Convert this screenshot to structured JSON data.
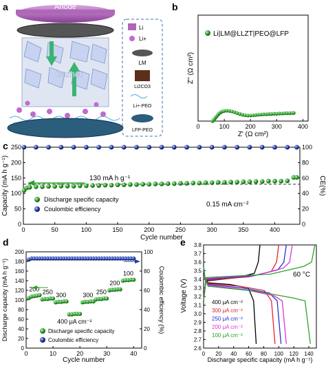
{
  "panel_labels": [
    "a",
    "b",
    "c",
    "d",
    "e"
  ],
  "schematic": {
    "anode_label": "Anode",
    "center_label": "Garnet",
    "legend": [
      {
        "icon": "li-disk-icon",
        "label": "Li"
      },
      {
        "icon": "li-ion-icon",
        "label": "Li+"
      },
      {
        "icon": "liquid-metal-icon",
        "label": "LM"
      },
      {
        "icon": "li2co3-icon",
        "label": "Li2CO3"
      },
      {
        "icon": "li-peo-icon",
        "label": "Li+-PEO"
      },
      {
        "icon": "lfp-peo-icon",
        "label": "LFP-PEO"
      }
    ],
    "colors": {
      "anode": "#b067b8",
      "garnet_arrow": "#3cb371",
      "lfp": "#2b5d7c",
      "peo": "#4aa8d8",
      "li_ion": "#c06ad0"
    }
  },
  "chart_data": [
    {
      "panel": "b",
      "type": "scatter",
      "xlabel": "Z' (Ω cm²)",
      "ylabel": "Z'' (Ω cm²)",
      "xlim": [
        0,
        420
      ],
      "ylim": [
        0,
        420
      ],
      "xticks": [
        0,
        100,
        200,
        300,
        400
      ],
      "yticks": [],
      "series": [
        {
          "name": "Li|LM@LLZT|PEO@LFP",
          "color": "#2ca02c",
          "x": [
            55,
            60,
            65,
            70,
            75,
            80,
            85,
            90,
            95,
            100,
            110,
            120,
            130,
            140,
            150,
            160,
            170,
            180,
            190,
            200,
            210,
            220,
            230,
            240,
            250,
            260,
            270,
            280,
            290,
            300,
            310,
            320,
            330,
            340,
            350,
            360,
            365
          ],
          "y": [
            0,
            5,
            12,
            18,
            24,
            30,
            34,
            37,
            39,
            40,
            41,
            40,
            38,
            35,
            31,
            28,
            25,
            23,
            22,
            22,
            23,
            24,
            25,
            26,
            27,
            27,
            28,
            28,
            29,
            29,
            30,
            30,
            31,
            31,
            31,
            32,
            32
          ]
        }
      ]
    },
    {
      "panel": "c",
      "type": "scatter",
      "xlabel": "Cycle number",
      "ylabel": "Capacity (mA h g⁻¹)",
      "y2label": "CE(%)",
      "xlim": [
        0,
        440
      ],
      "ylim": [
        0,
        250
      ],
      "y2lim": [
        0,
        100
      ],
      "xticks": [
        0,
        50,
        100,
        150,
        200,
        250,
        300,
        350,
        400
      ],
      "yticks": [
        0,
        50,
        100,
        150,
        200,
        250
      ],
      "y2ticks": [
        0,
        20,
        40,
        60,
        80,
        100
      ],
      "annotations": [
        "130 mA h g⁻¹",
        "0.15 mA cm⁻²"
      ],
      "legend_position": "bottom-left",
      "series": [
        {
          "name": "Discharge specific capacity",
          "color": "#2ca02c",
          "axis": "left",
          "x": [
            1,
            5,
            10,
            20,
            30,
            40,
            50,
            60,
            70,
            80,
            90,
            100,
            110,
            120,
            130,
            140,
            150,
            160,
            170,
            180,
            190,
            200,
            210,
            220,
            230,
            240,
            250,
            260,
            270,
            280,
            290,
            300,
            310,
            320,
            330,
            340,
            350,
            360,
            370,
            380,
            390,
            400,
            410,
            420,
            430,
            435
          ],
          "y": [
            110,
            118,
            120,
            122,
            122,
            123,
            123,
            124,
            124,
            124,
            125,
            125,
            126,
            126,
            127,
            127,
            128,
            128,
            129,
            129,
            130,
            130,
            131,
            131,
            132,
            132,
            133,
            133,
            134,
            134,
            135,
            135,
            136,
            136,
            137,
            137,
            138,
            138,
            139,
            139,
            140,
            140,
            140,
            141,
            152,
            152
          ]
        },
        {
          "name": "Coulombic efficiency",
          "color": "#1f3aa8",
          "axis": "right",
          "x": [
            1,
            20,
            40,
            60,
            80,
            100,
            120,
            140,
            160,
            180,
            200,
            220,
            240,
            260,
            280,
            300,
            320,
            340,
            360,
            380,
            400,
            420,
            435
          ],
          "y": [
            100,
            100,
            100,
            100,
            100,
            100,
            100,
            100,
            100,
            100,
            100,
            100,
            100,
            100,
            100,
            100,
            100,
            100,
            100,
            100,
            100,
            100,
            100
          ]
        }
      ],
      "reference_line": 130
    },
    {
      "panel": "d",
      "type": "scatter",
      "xlabel": "Cycle number",
      "ylabel": "Discharge capacity (mA h g⁻¹)",
      "y2label": "Coulombic efficiency (%)",
      "xlim": [
        0,
        43
      ],
      "ylim": [
        0,
        200
      ],
      "y2lim": [
        0,
        100
      ],
      "xticks": [
        0,
        10,
        20,
        30,
        40
      ],
      "yticks": [
        0,
        20,
        40,
        60,
        80,
        100,
        120,
        140,
        160,
        180,
        200
      ],
      "y2ticks": [
        0,
        20,
        40,
        60,
        80,
        100
      ],
      "rate_labels": [
        "200",
        "250",
        "300",
        "400 μA cm⁻²",
        "300",
        "250",
        "200",
        "100"
      ],
      "legend_position": "bottom-left",
      "series": [
        {
          "name": "Discharge specific capacity",
          "color": "#2ca02c",
          "axis": "left",
          "x": [
            1,
            2,
            3,
            4,
            5,
            6,
            7,
            8,
            9,
            10,
            11,
            12,
            13,
            14,
            15,
            16,
            17,
            18,
            19,
            20,
            21,
            22,
            23,
            24,
            25,
            26,
            27,
            28,
            29,
            30,
            31,
            32,
            33,
            34,
            35,
            36,
            37,
            38,
            39,
            40
          ],
          "y": [
            104,
            107,
            108,
            109,
            110,
            101,
            102,
            102,
            103,
            103,
            95,
            96,
            96,
            97,
            97,
            70,
            70,
            71,
            71,
            71,
            95,
            96,
            96,
            97,
            97,
            101,
            102,
            102,
            103,
            103,
            120,
            121,
            121,
            122,
            122,
            140,
            141,
            141,
            142,
            142
          ]
        },
        {
          "name": "Coulombic efficiency",
          "color": "#1f3aa8",
          "axis": "right",
          "x": [
            1,
            2,
            3,
            4,
            5,
            6,
            7,
            8,
            9,
            10,
            11,
            12,
            13,
            14,
            15,
            16,
            17,
            18,
            19,
            20,
            21,
            22,
            23,
            24,
            25,
            26,
            27,
            28,
            29,
            30,
            31,
            32,
            33,
            34,
            35,
            36,
            37,
            38,
            39,
            40
          ],
          "y": [
            92,
            93,
            93,
            93,
            93,
            93,
            93,
            93,
            93,
            93,
            93,
            93,
            93,
            93,
            93,
            93,
            93,
            93,
            93,
            93,
            93,
            93,
            93,
            93,
            93,
            93,
            93,
            93,
            93,
            93,
            93,
            93,
            93,
            93,
            93,
            93,
            93,
            93,
            93,
            93
          ]
        }
      ]
    },
    {
      "panel": "e",
      "type": "line",
      "xlabel": "Discharge specific capacity (mA h g⁻¹)",
      "ylabel": "Voltage (V)",
      "xlim": [
        0,
        150
      ],
      "ylim": [
        2.6,
        3.8
      ],
      "xticks": [
        0,
        20,
        40,
        60,
        80,
        100,
        120,
        140
      ],
      "yticks": [
        2.6,
        2.7,
        2.8,
        2.9,
        3.0,
        3.1,
        3.2,
        3.3,
        3.4,
        3.5,
        3.6,
        3.7,
        3.8
      ],
      "annotation": "60 °C",
      "legend_position": "bottom-left",
      "series": [
        {
          "name": "400 μA cm⁻²",
          "color": "#000000",
          "x_end": 70,
          "x_ch_end": 75
        },
        {
          "name": "300 μA cm⁻²",
          "color": "#e8202a",
          "x_end": 95,
          "x_ch_end": 100
        },
        {
          "name": "250 μA cm⁻²",
          "color": "#2330d6",
          "x_end": 103,
          "x_ch_end": 110
        },
        {
          "name": "200 μA cm⁻²",
          "color": "#e033d8",
          "x_end": 110,
          "x_ch_end": 118
        },
        {
          "name": "100 μA cm⁻²",
          "color": "#2ca02c",
          "x_end": 142,
          "x_ch_end": 148
        }
      ]
    }
  ]
}
